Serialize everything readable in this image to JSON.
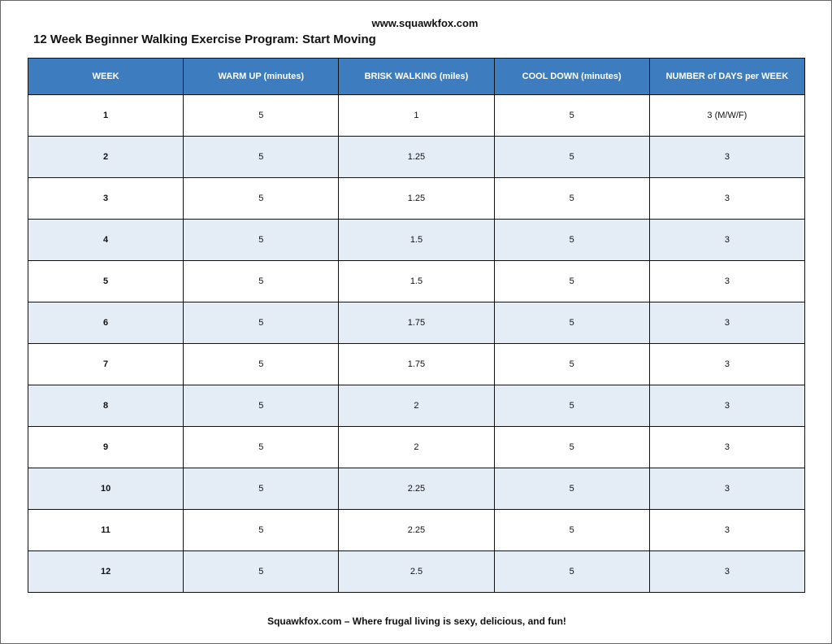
{
  "header": {
    "site": "www.squawkfox.com",
    "title": "12 Week Beginner Walking Exercise Program: Start Moving"
  },
  "table": {
    "columns": [
      "WEEK",
      "WARM UP (minutes)",
      "BRISK WALKING (miles)",
      "COOL DOWN (minutes)",
      "NUMBER of DAYS per WEEK"
    ],
    "rows": [
      [
        "1",
        "5",
        "1",
        "5",
        "3 (M/W/F)"
      ],
      [
        "2",
        "5",
        "1.25",
        "5",
        "3"
      ],
      [
        "3",
        "5",
        "1.25",
        "5",
        "3"
      ],
      [
        "4",
        "5",
        "1.5",
        "5",
        "3"
      ],
      [
        "5",
        "5",
        "1.5",
        "5",
        "3"
      ],
      [
        "6",
        "5",
        "1.75",
        "5",
        "3"
      ],
      [
        "7",
        "5",
        "1.75",
        "5",
        "3"
      ],
      [
        "8",
        "5",
        "2",
        "5",
        "3"
      ],
      [
        "9",
        "5",
        "2",
        "5",
        "3"
      ],
      [
        "10",
        "5",
        "2.25",
        "5",
        "3"
      ],
      [
        "11",
        "5",
        "2.25",
        "5",
        "3"
      ],
      [
        "12",
        "5",
        "2.5",
        "5",
        "3"
      ]
    ]
  },
  "footer": "Squawkfox.com – Where frugal living is sexy, delicious, and fun!"
}
